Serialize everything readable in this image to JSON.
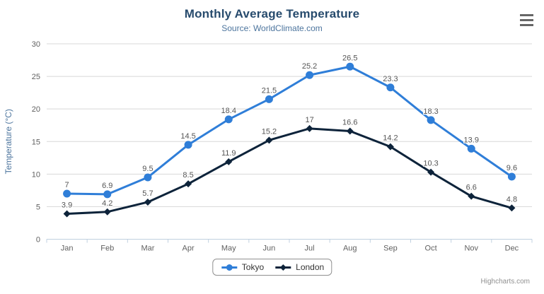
{
  "chart_data": {
    "type": "line",
    "title": "Monthly Average Temperature",
    "subtitle": "Source: WorldClimate.com",
    "categories": [
      "Jan",
      "Feb",
      "Mar",
      "Apr",
      "May",
      "Jun",
      "Jul",
      "Aug",
      "Sep",
      "Oct",
      "Nov",
      "Dec"
    ],
    "series": [
      {
        "name": "Tokyo",
        "color": "#2f7ed8",
        "marker": "circle",
        "values": [
          7,
          6.9,
          9.5,
          14.5,
          18.4,
          21.5,
          25.2,
          26.5,
          23.3,
          18.3,
          13.9,
          9.6
        ]
      },
      {
        "name": "London",
        "color": "#0d233a",
        "marker": "diamond",
        "values": [
          3.9,
          4.2,
          5.7,
          8.5,
          11.9,
          15.2,
          17,
          16.6,
          14.2,
          10.3,
          6.6,
          4.8
        ]
      }
    ],
    "xlabel": "",
    "ylabel": "Temperature (°C)",
    "ylim": [
      0,
      30
    ],
    "yticks": [
      0,
      5,
      10,
      15,
      20,
      25,
      30
    ],
    "grid": true,
    "data_labels": true,
    "legend_position": "bottom"
  },
  "icons": {
    "export_menu": "hamburger-menu-icon"
  },
  "credits": "Highcharts.com",
  "colors": {
    "title": "#274b6d",
    "subtitle": "#4d759e",
    "axis_title": "#4d759e",
    "axis_labels": "#606060",
    "data_labels": "#555555",
    "grid_line": "#d8d8d8",
    "axis_line": "#c0d0e0",
    "legend_border": "#909090",
    "menu_icon": "#666666",
    "credits": "#909090"
  }
}
